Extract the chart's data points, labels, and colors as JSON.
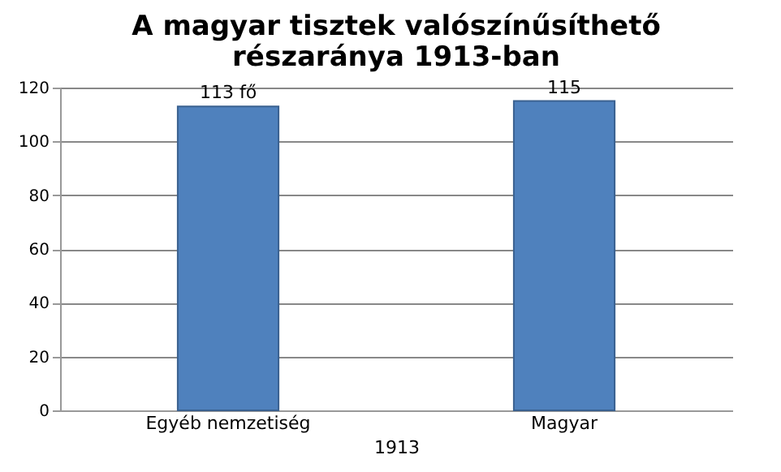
{
  "chart_data": {
    "type": "bar",
    "title": "A magyar tisztek valószínűsíthető részaránya 1913-ban",
    "xlabel": "1913",
    "categories": [
      "Egyéb nemzetiség",
      "Magyar"
    ],
    "values": [
      113,
      115
    ],
    "value_labels": [
      "113 fő",
      "115"
    ],
    "color": "#4f81bd",
    "ylim": [
      0,
      120
    ],
    "yticks": [
      0,
      20,
      40,
      60,
      80,
      100,
      120
    ],
    "grid": "y"
  }
}
